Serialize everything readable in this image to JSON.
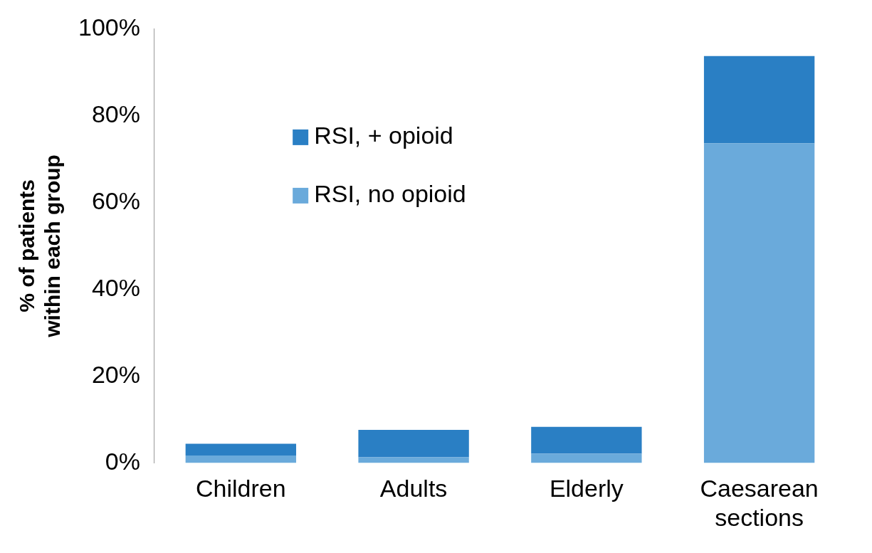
{
  "chart_data": {
    "type": "bar",
    "stacked": true,
    "ylabel": "% of patients within each group",
    "categories": [
      "Children",
      "Adults",
      "Elderly",
      "Caesarean sections"
    ],
    "series": [
      {
        "name": "RSI, no opioid",
        "color": "#6aaadb",
        "values": [
          1.7,
          1.3,
          2.1,
          73.6
        ]
      },
      {
        "name": "RSI, + opioid",
        "color": "#2a7fc4",
        "values": [
          2.7,
          6.3,
          6.2,
          20.1
        ]
      }
    ],
    "ylim": [
      0,
      100
    ],
    "yticks": [
      {
        "value": 0,
        "label": "0%"
      },
      {
        "value": 20,
        "label": "20%"
      },
      {
        "value": 40,
        "label": "40%"
      },
      {
        "value": 60,
        "label": "60%"
      },
      {
        "value": 80,
        "label": "80%"
      },
      {
        "value": 100,
        "label": "100%"
      }
    ],
    "grid": false,
    "legend": "top left"
  }
}
